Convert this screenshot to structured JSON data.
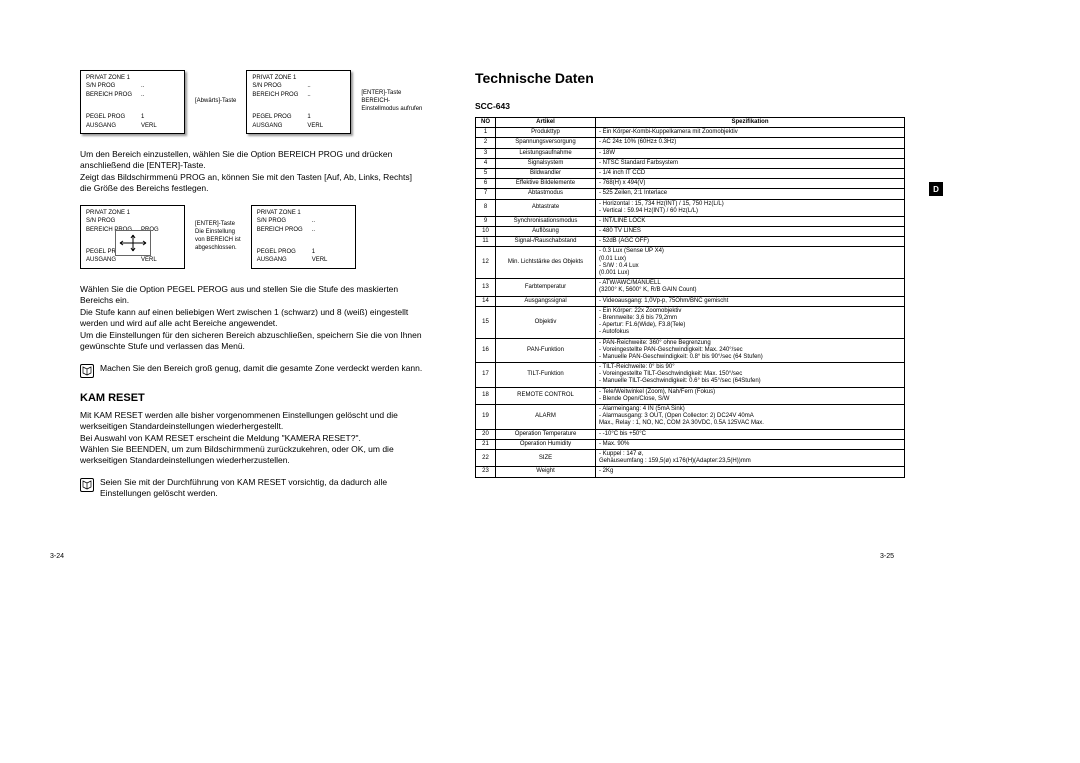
{
  "left": {
    "menu1": {
      "title": "PRIVAT ZONE 1",
      "rows": [
        [
          "S/N PROG",
          ".."
        ],
        [
          "BEREICH PROG",
          ".."
        ]
      ],
      "footer": [
        [
          "PEGEL PROG",
          "1"
        ],
        [
          "AUSGANG",
          "VERL"
        ]
      ]
    },
    "caption1": "[Abwärts]-Taste",
    "caption2": "[ENTER]-Taste\nBEREICH-\nEinstellmodus aufrufen",
    "para1": "Um den Bereich einzustellen, wählen Sie die Option BEREICH PROG und drücken anschließend die [ENTER]-Taste.\nZeigt das Bildschirmmenü PROG an, können Sie mit den Tasten [Auf, Ab, Links, Rechts] die Größe des Bereichs festlegen.",
    "menu2_left": {
      "title": "PRIVAT ZONE 1",
      "rows": [
        [
          "S/N PROG",
          ""
        ],
        [
          "BEREICH PROG",
          "PROG"
        ]
      ],
      "footer": [
        [
          "PEGEL PROG",
          "1"
        ],
        [
          "AUSGANG",
          "VERL"
        ]
      ]
    },
    "caption3": "[ENTER]-Taste\nDie Einstellung\nvon BEREICH ist\nabgeschlossen.",
    "menu2_right": {
      "title": "PRIVAT ZONE 1",
      "rows": [
        [
          "S/N PROG",
          ".."
        ],
        [
          "BEREICH PROG",
          ".."
        ]
      ],
      "footer": [
        [
          "PEGEL PROG",
          "1"
        ],
        [
          "AUSGANG",
          "VERL"
        ]
      ]
    },
    "para2": "Wählen Sie die Option PEGEL PEROG aus und stellen Sie die Stufe des maskierten Bereichs ein.\nDie Stufe kann auf einen beliebigen Wert zwischen 1 (schwarz) und 8 (weiß) eingestellt werden und wird auf alle acht Bereiche angewendet.\nUm die Einstellungen für den sicheren Bereich abzuschließen, speichern Sie die von Ihnen gewünschte Stufe und verlassen das Menü.",
    "note1": "Machen Sie den Bereich groß genug, damit die gesamte Zone verdeckt werden kann.",
    "kam_title": "KAM RESET",
    "kam_para": "Mit KAM RESET werden alle bisher vorgenommenen Einstellungen gelöscht und die werkseitigen Standardeinstellungen wiederhergestellt.\nBei Auswahl von KAM RESET erscheint die Meldung \"KAMERA RESET?\".\nWählen Sie BEENDEN, um zum Bildschirmmenü zurückzukehren, oder OK, um die werkseitigen Standardeinstellungen wiederherzustellen.",
    "note2": "Seien Sie mit der Durchführung von KAM RESET vorsichtig, da dadurch alle Einstellungen gelöscht werden.",
    "page_num": "3-24"
  },
  "right": {
    "title": "Technische Daten",
    "model": "SCC-643",
    "side_tab": "D",
    "page_num": "3-25",
    "table": {
      "headers": [
        "NO",
        "Artikel",
        "Spezifikation"
      ],
      "rows": [
        [
          "1",
          "Produkttyp",
          "- Ein Körper-Kombi-Kuppelkamera mit Zoomobjektiv"
        ],
        [
          "2",
          "Spannungsversorgung",
          "- AC 24± 10% (60Hz± 0.3Hz)"
        ],
        [
          "3",
          "Leistungsaufnahme",
          "- 18W"
        ],
        [
          "4",
          "Signalsystem",
          "- NTSC Standard Farbsystem"
        ],
        [
          "5",
          "Bildwandler",
          "- 1/4 inch IT CCD"
        ],
        [
          "6",
          "Effektive Bildelemente",
          "- 768(H) x 494(V)"
        ],
        [
          "7",
          "Abtastmodus",
          "- 525 Zeilen, 2:1 Interlace"
        ],
        [
          "8",
          "Abtastrate",
          "- Horizontal : 15, 734 Hz(INT) / 15, 750 Hz(L/L)\n- Vertical   : 59.94 Hz(INT) / 60 Hz(L/L)"
        ],
        [
          "9",
          "Synchronisationsmodus",
          "- INT/LINE LOCK"
        ],
        [
          "10",
          "Auflösung",
          "- 480 TV LINES"
        ],
        [
          "11",
          "Signal-/Rauschabstand",
          "- 52dB (AGC OFF)"
        ],
        [
          "12",
          "Min. Lichtstärke des Objekts",
          "- 0.3 Lux (Sense UP X4)\n  (0.01 Lux)\n- S/W : 0.4 Lux\n  (0.001 Lux)"
        ],
        [
          "13",
          "Farbtemperatur",
          "- ATW/AWC/MANUELL\n  (3200° K, 5600° K, R/B GAIN Count)"
        ],
        [
          "14",
          "Ausgangssignal",
          "- Videoausgang: 1,0Vp-p, 75Ohm/BNC gemischt"
        ],
        [
          "15",
          "Objektiv",
          "- Ein Körper: 22x Zoomobjektiv\n- Brennweite: 3,6 bis 79,2mm\n- Apertur: F1.6(Wide), F3.8(Tele)\n- Autofokus"
        ],
        [
          "16",
          "PAN-Funktion",
          "- PAN-Reichweite: 360° ohne Begrenzung\n- Voreingestellte PAN-Geschwindigkeit: Max. 240°/sec\n- Manuelle PAN-Geschwindigkeit: 0.8° bis 90°/sec (64 Stufen)"
        ],
        [
          "17",
          "TILT-Funktion",
          "- TILT-Reichweite: 0° bis 90°\n- Voreingestellte TILT-Geschwindigkeit: Max. 150°/sec\n- Manuelle TILT-Geschwindigkeit: 0.6° bis 45°/sec (64Stufen)"
        ],
        [
          "18",
          "REMOTE CONTROL",
          "- Tele/Weitwinkel (Zoom), Nah/Fern (Fokus)\n- Blende Open/Close, S/W"
        ],
        [
          "19",
          "ALARM",
          "- Alarmeingang: 4 IN (5mA Sink)\n- Alarmausgang: 3 OUT, (Open Collector: 2) DC24V 40mA\n  Max., Relay : 1, NO, NC, COM 2A 30VDC, 0.5A 125VAC Max."
        ],
        [
          "20",
          "Operation Temperature",
          "- -10°C bis +50°C"
        ],
        [
          "21",
          "Operation Humidity",
          "- Max. 90%"
        ],
        [
          "22",
          "SIZE",
          "- Kuppel : 147 ø,\n  Gehäuseumfang : 159,5(ø) x176(H)(Adapter:23,5(H))mm"
        ],
        [
          "23",
          "Weight",
          "- 2Kg"
        ]
      ]
    }
  }
}
